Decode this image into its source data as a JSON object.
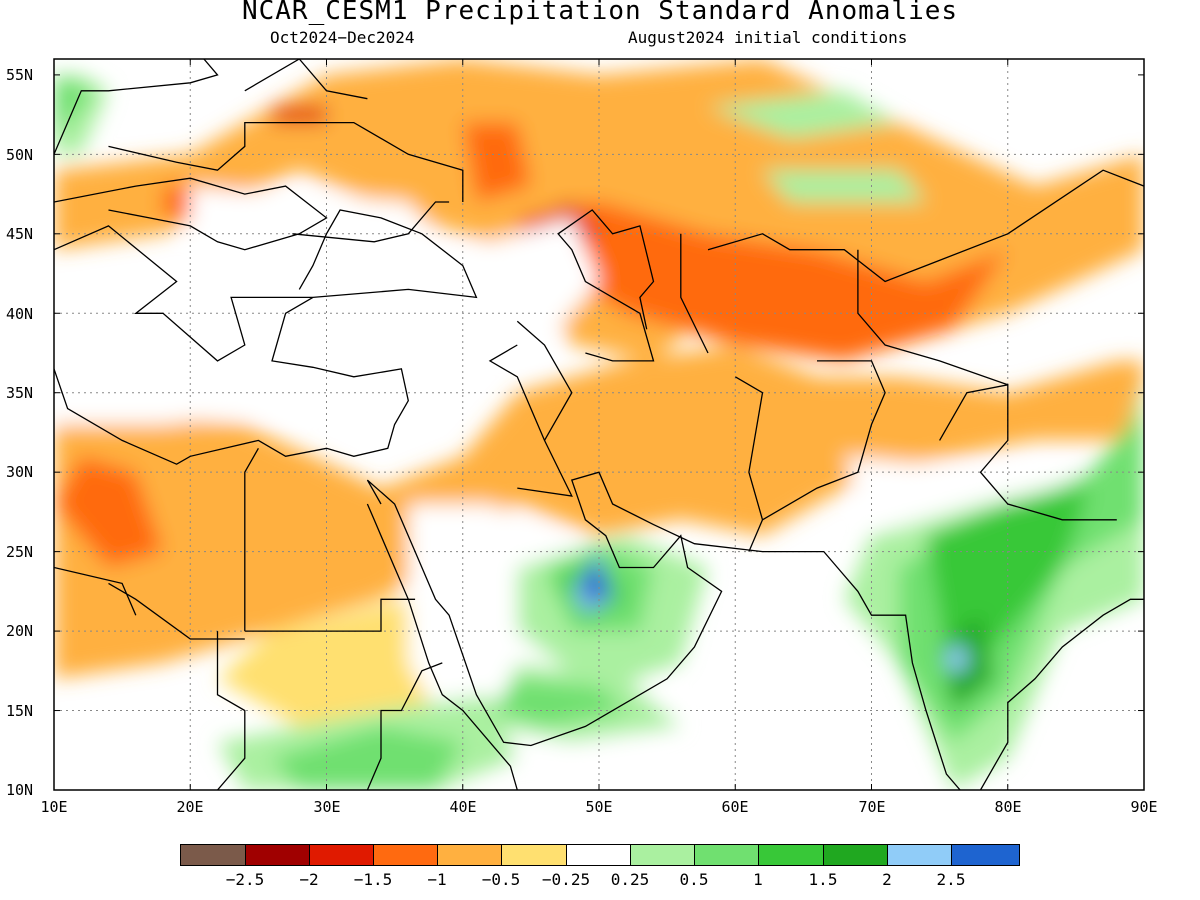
{
  "header": {
    "title": "NCAR_CESM1 Precipitation Standard Anomalies",
    "period": "Oct2024-Dec2024",
    "init": "August2024 initial conditions"
  },
  "map": {
    "lon_range": [
      10,
      90
    ],
    "lat_range": [
      10,
      56
    ],
    "lat_labels": [
      "55N",
      "50N",
      "45N",
      "40N",
      "35N",
      "30N",
      "25N",
      "20N",
      "15N",
      "10N"
    ],
    "lat_values": [
      55,
      50,
      45,
      40,
      35,
      30,
      25,
      20,
      15,
      10
    ],
    "lon_labels": [
      "10E",
      "20E",
      "30E",
      "40E",
      "50E",
      "60E",
      "70E",
      "80E",
      "90E"
    ],
    "lon_values": [
      10,
      20,
      30,
      40,
      50,
      60,
      70,
      80,
      90
    ],
    "gridlines": "dotted"
  },
  "colorbar": {
    "colors": [
      "#7b5a4a",
      "#a00000",
      "#e01a00",
      "#ff6a10",
      "#ffb040",
      "#ffe070",
      "#ffffff",
      "#aaf0a0",
      "#70e070",
      "#38c838",
      "#20a820",
      "#90ccf8",
      "#1e64d0"
    ],
    "labels": [
      "-2.5",
      "-2",
      "-1.5",
      "-1",
      "-0.5",
      "-0.25",
      "0.25",
      "0.5",
      "1",
      "1.5",
      "2",
      "2.5"
    ]
  }
}
